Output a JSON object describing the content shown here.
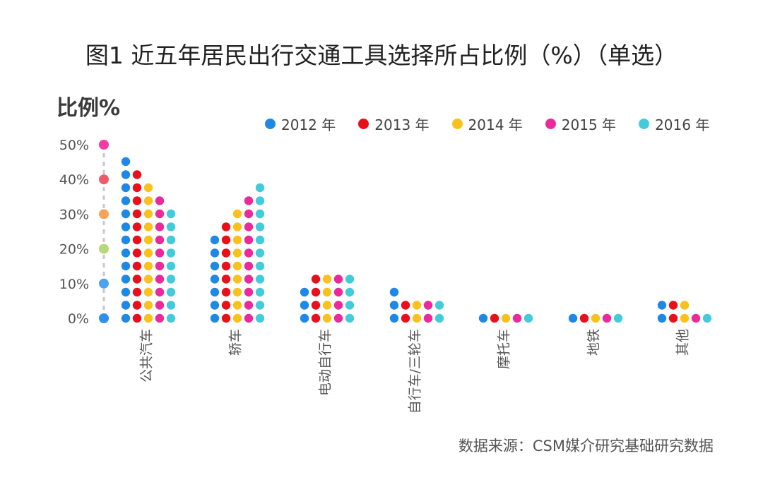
{
  "title": "图1 近五年居民出行交通工具选择所占比例（%）（单选）",
  "source": "数据来源：CSM媒介研究基础研究数据",
  "chart_data": {
    "type": "dot-bar",
    "title": "图1 近五年居民出行交通工具选择所占比例（%）（单选）",
    "ylabel": "比例%",
    "ylim": [
      0,
      50
    ],
    "yticks": [
      {
        "value": 0,
        "label": "0%",
        "color": "#2f8fef"
      },
      {
        "value": 10,
        "label": "10%",
        "color": "#4aa3f2"
      },
      {
        "value": 20,
        "label": "20%",
        "color": "#b6d77a"
      },
      {
        "value": 30,
        "label": "30%",
        "color": "#f8a35a"
      },
      {
        "value": 40,
        "label": "40%",
        "color": "#ef5a6b"
      },
      {
        "value": 50,
        "label": "50%",
        "color": "#f53aa2"
      }
    ],
    "categories": [
      "公共汽车",
      "轿车",
      "电动自行车",
      "自行车/三轮车",
      "摩托车",
      "地铁",
      "其他"
    ],
    "series": [
      {
        "name": "2012 年",
        "color": "#1e88e5",
        "values": [
          46,
          24,
          9,
          8,
          1,
          1,
          5
        ]
      },
      {
        "name": "2013 年",
        "color": "#e8101b",
        "values": [
          42,
          28,
          12,
          5,
          1,
          1,
          5
        ]
      },
      {
        "name": "2014 年",
        "color": "#f8c21d",
        "values": [
          38,
          31,
          13,
          5,
          1,
          1,
          5
        ]
      },
      {
        "name": "2015 年",
        "color": "#ea2a9b",
        "values": [
          35,
          35,
          13,
          5,
          1,
          1,
          1
        ]
      },
      {
        "name": "2016 年",
        "color": "#43cbdb",
        "values": [
          32,
          39,
          13,
          5,
          1,
          1,
          1
        ]
      }
    ]
  }
}
